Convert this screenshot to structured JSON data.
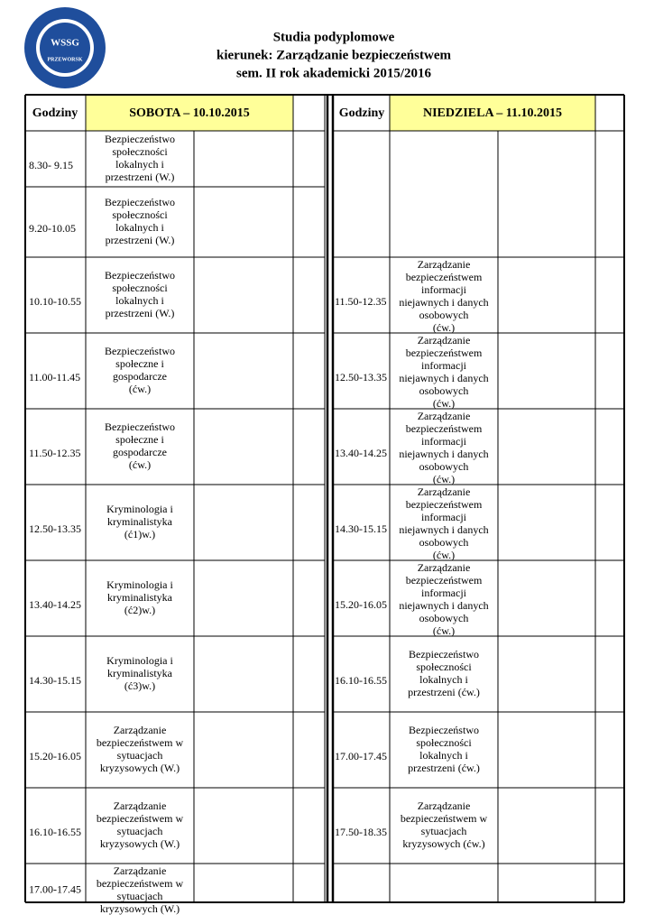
{
  "logo": {
    "name": "WSSG",
    "city": "PRZEWORSK"
  },
  "header": {
    "lines": [
      "Studia podyplomowe",
      "kierunek: Zarządzanie bezpieczeństwem",
      "sem. II  rok akademicki 2015/2016"
    ]
  },
  "table": {
    "headers": [
      "Godziny",
      "SOBOTA – 10.10.2015",
      "Godziny",
      "NIEDZIELA – 11.10.2015"
    ],
    "saturday": [
      {
        "time": "8.30-  9.15",
        "subject": [
          "Bezpieczeństwo",
          "społeczności",
          "lokalnych i",
          "przestrzeni (W.)"
        ]
      },
      {
        "time": "9.20-10.05",
        "subject": [
          "Bezpieczeństwo",
          "społeczności",
          "lokalnych i",
          "przestrzeni (W.)"
        ]
      },
      {
        "time": "10.10-10.55",
        "subject": [
          "Bezpieczeństwo",
          "społeczności",
          "lokalnych i",
          "przestrzeni (W.)"
        ]
      },
      {
        "time": "11.00-11.45",
        "subject": [
          "Bezpieczeństwo",
          "społeczne i",
          "gospodarcze",
          "(ćw.)"
        ]
      },
      {
        "time": "11.50-12.35",
        "subject": [
          "Bezpieczeństwo",
          "społeczne i",
          "gospodarcze",
          "(ćw.)"
        ]
      },
      {
        "time": "12.50-13.35",
        "subject": [
          "Kryminologia i",
          "kryminalistyka",
          "(ć1)w.)"
        ]
      },
      {
        "time": "13.40-14.25",
        "subject": [
          "Kryminologia i",
          "kryminalistyka",
          "(ć2)w.)"
        ]
      },
      {
        "time": "14.30-15.15",
        "subject": [
          "Kryminologia i",
          "kryminalistyka",
          "(ć3)w.)"
        ]
      },
      {
        "time": "15.20-16.05",
        "subject": [
          "Zarządzanie",
          "bezpieczeństwem w",
          "sytuacjach",
          "kryzysowych (W.)"
        ]
      },
      {
        "time": "16.10-16.55",
        "subject": [
          "Zarządzanie",
          "bezpieczeństwem w",
          "sytuacjach",
          "kryzysowych (W.)"
        ]
      },
      {
        "time": "17.00-17.45",
        "subject": [
          "Zarządzanie",
          "bezpieczeństwem w",
          "sytuacjach",
          "kryzysowych (W.)"
        ]
      }
    ],
    "sunday": [
      {
        "time": "11.50-12.35",
        "subject": [
          "Zarządzanie",
          "bezpieczeństwem",
          "informacji",
          "niejawnych i danych",
          "osobowych",
          "(ćw.)"
        ]
      },
      {
        "time": "12.50-13.35",
        "subject": [
          "Zarządzanie",
          "bezpieczeństwem",
          "informacji",
          "niejawnych i danych",
          "osobowych",
          "(ćw.)"
        ]
      },
      {
        "time": "13.40-14.25",
        "subject": [
          "Zarządzanie",
          "bezpieczeństwem",
          "informacji",
          "niejawnych i danych",
          "osobowych",
          "(ćw.)"
        ]
      },
      {
        "time": "14.30-15.15",
        "subject": [
          "Zarządzanie",
          "bezpieczeństwem",
          "informacji",
          "niejawnych i danych",
          "osobowych",
          "(ćw.)"
        ]
      },
      {
        "time": "15.20-16.05",
        "subject": [
          "Zarządzanie",
          "bezpieczeństwem",
          "informacji",
          "niejawnych i danych",
          "osobowych",
          "(ćw.)"
        ]
      },
      {
        "time": "16.10-16.55",
        "subject": [
          "Bezpieczeństwo",
          "społeczności",
          "lokalnych i",
          "przestrzeni (ćw.)"
        ]
      },
      {
        "time": "17.00-17.45",
        "subject": [
          "Bezpieczeństwo",
          "społeczności",
          "lokalnych i",
          "przestrzeni (ćw.)"
        ]
      },
      {
        "time": "17.50-18.35",
        "subject": [
          "Zarządzanie",
          "bezpieczeństwem w",
          "sytuacjach",
          "kryzysowych (ćw.)"
        ]
      }
    ]
  }
}
